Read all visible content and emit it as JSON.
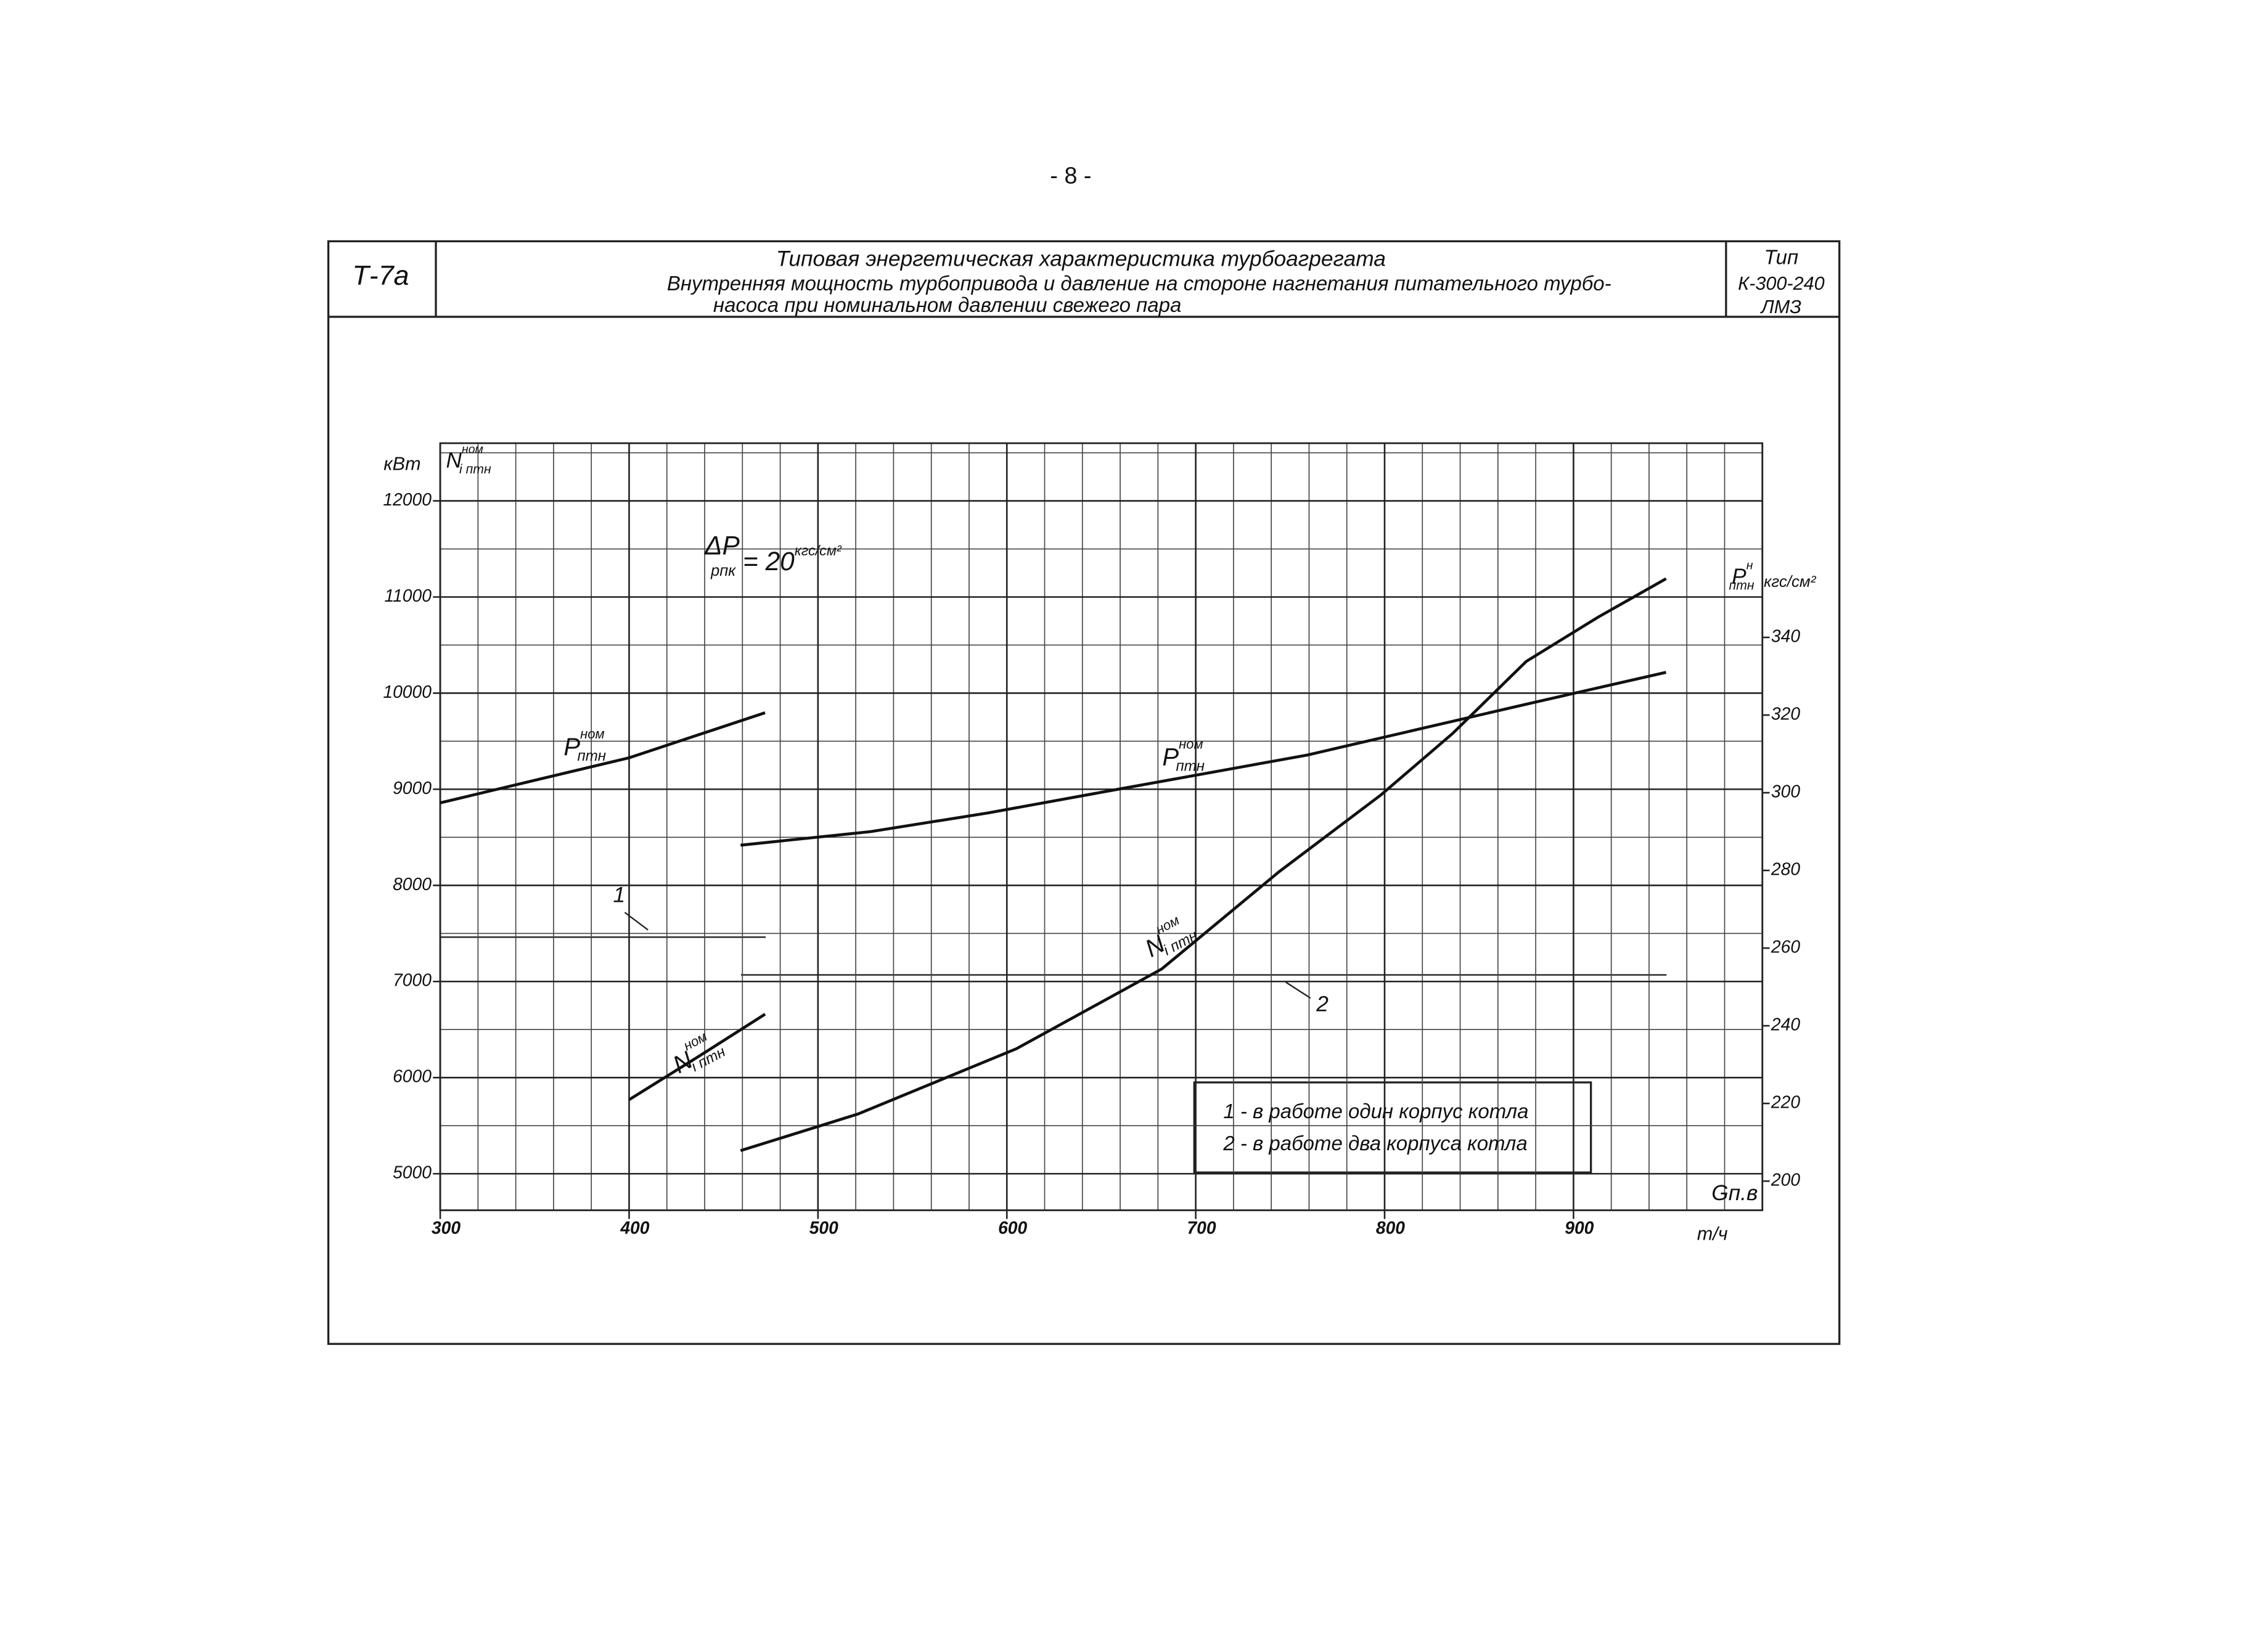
{
  "page_number": "- 8 -",
  "header": {
    "code": "Т-7а",
    "title_lines": [
      "Типовая энергетическая характеристика турбоагрегата",
      "Внутренняя мощность турбопривода и давление на стороне нагнетания питательного турбо-",
      "насоса при номинальном давлении свежего пара"
    ],
    "type_lines": [
      "Тип",
      "К-300-240",
      "ЛМЗ"
    ]
  },
  "chart_data": {
    "type": "line",
    "x_label": "Gп.в",
    "x_unit": "т/ч",
    "y_unit": "кВт",
    "y_label": {
      "main": "N",
      "sub": "i птн",
      "sup": "ном"
    },
    "y2_unit": "кгс/см²",
    "y2_label": {
      "main": "P",
      "sub": "птн",
      "sup": "н"
    },
    "xlim": [
      300,
      1000
    ],
    "xticks": [
      300,
      400,
      500,
      600,
      700,
      800,
      900
    ],
    "ylim": [
      4620,
      12600
    ],
    "yticks": [
      5000,
      6000,
      7000,
      8000,
      9000,
      10000,
      11000,
      12000
    ],
    "y2lim": [
      192.5,
      390
    ],
    "y2ticks": [
      200,
      220,
      240,
      260,
      280,
      300,
      320,
      340
    ],
    "grid": true,
    "minor_grid": {
      "x": 20,
      "y": 500
    },
    "series": [
      {
        "color": "#111",
        "axis": "y2",
        "x": [
          300,
          400,
          472
        ],
        "values": [
          297.4,
          309,
          320.6
        ]
      },
      {
        "color": "#111",
        "axis": "y2",
        "x": [
          459,
          528,
          590,
          660,
          759,
          875,
          949
        ],
        "values": [
          286.5,
          290,
          294.8,
          301,
          309.7,
          322.8,
          331
        ]
      },
      {
        "color": "#111",
        "x": [
          400,
          436,
          472
        ],
        "values": [
          5770,
          6210,
          6660
        ]
      },
      {
        "color": "#111",
        "x": [
          459,
          521,
          605,
          682,
          744,
          798,
          836,
          875,
          913,
          949
        ],
        "values": [
          5240,
          5620,
          6300,
          7130,
          8140,
          8940,
          9580,
          10330,
          10790,
          11190
        ]
      }
    ],
    "curve_labels": [
      {
        "main": "P",
        "sub": "птн",
        "sup": "ном"
      },
      {
        "main": "P",
        "sub": "птн",
        "sup": "ном"
      },
      {
        "main": "N",
        "sub": "i птн",
        "sup": "ном"
      },
      {
        "main": "N",
        "sub": "i птн",
        "sup": "ном"
      }
    ],
    "condition": {
      "main": "ΔP",
      "sub": "рпк",
      "rest": " = 20",
      "sup": "кгс/см²"
    },
    "annotations": [
      "1",
      "2"
    ],
    "legend_notes": [
      "1 - в работе один корпус котла",
      "2 - в работе два корпуса котла"
    ]
  }
}
